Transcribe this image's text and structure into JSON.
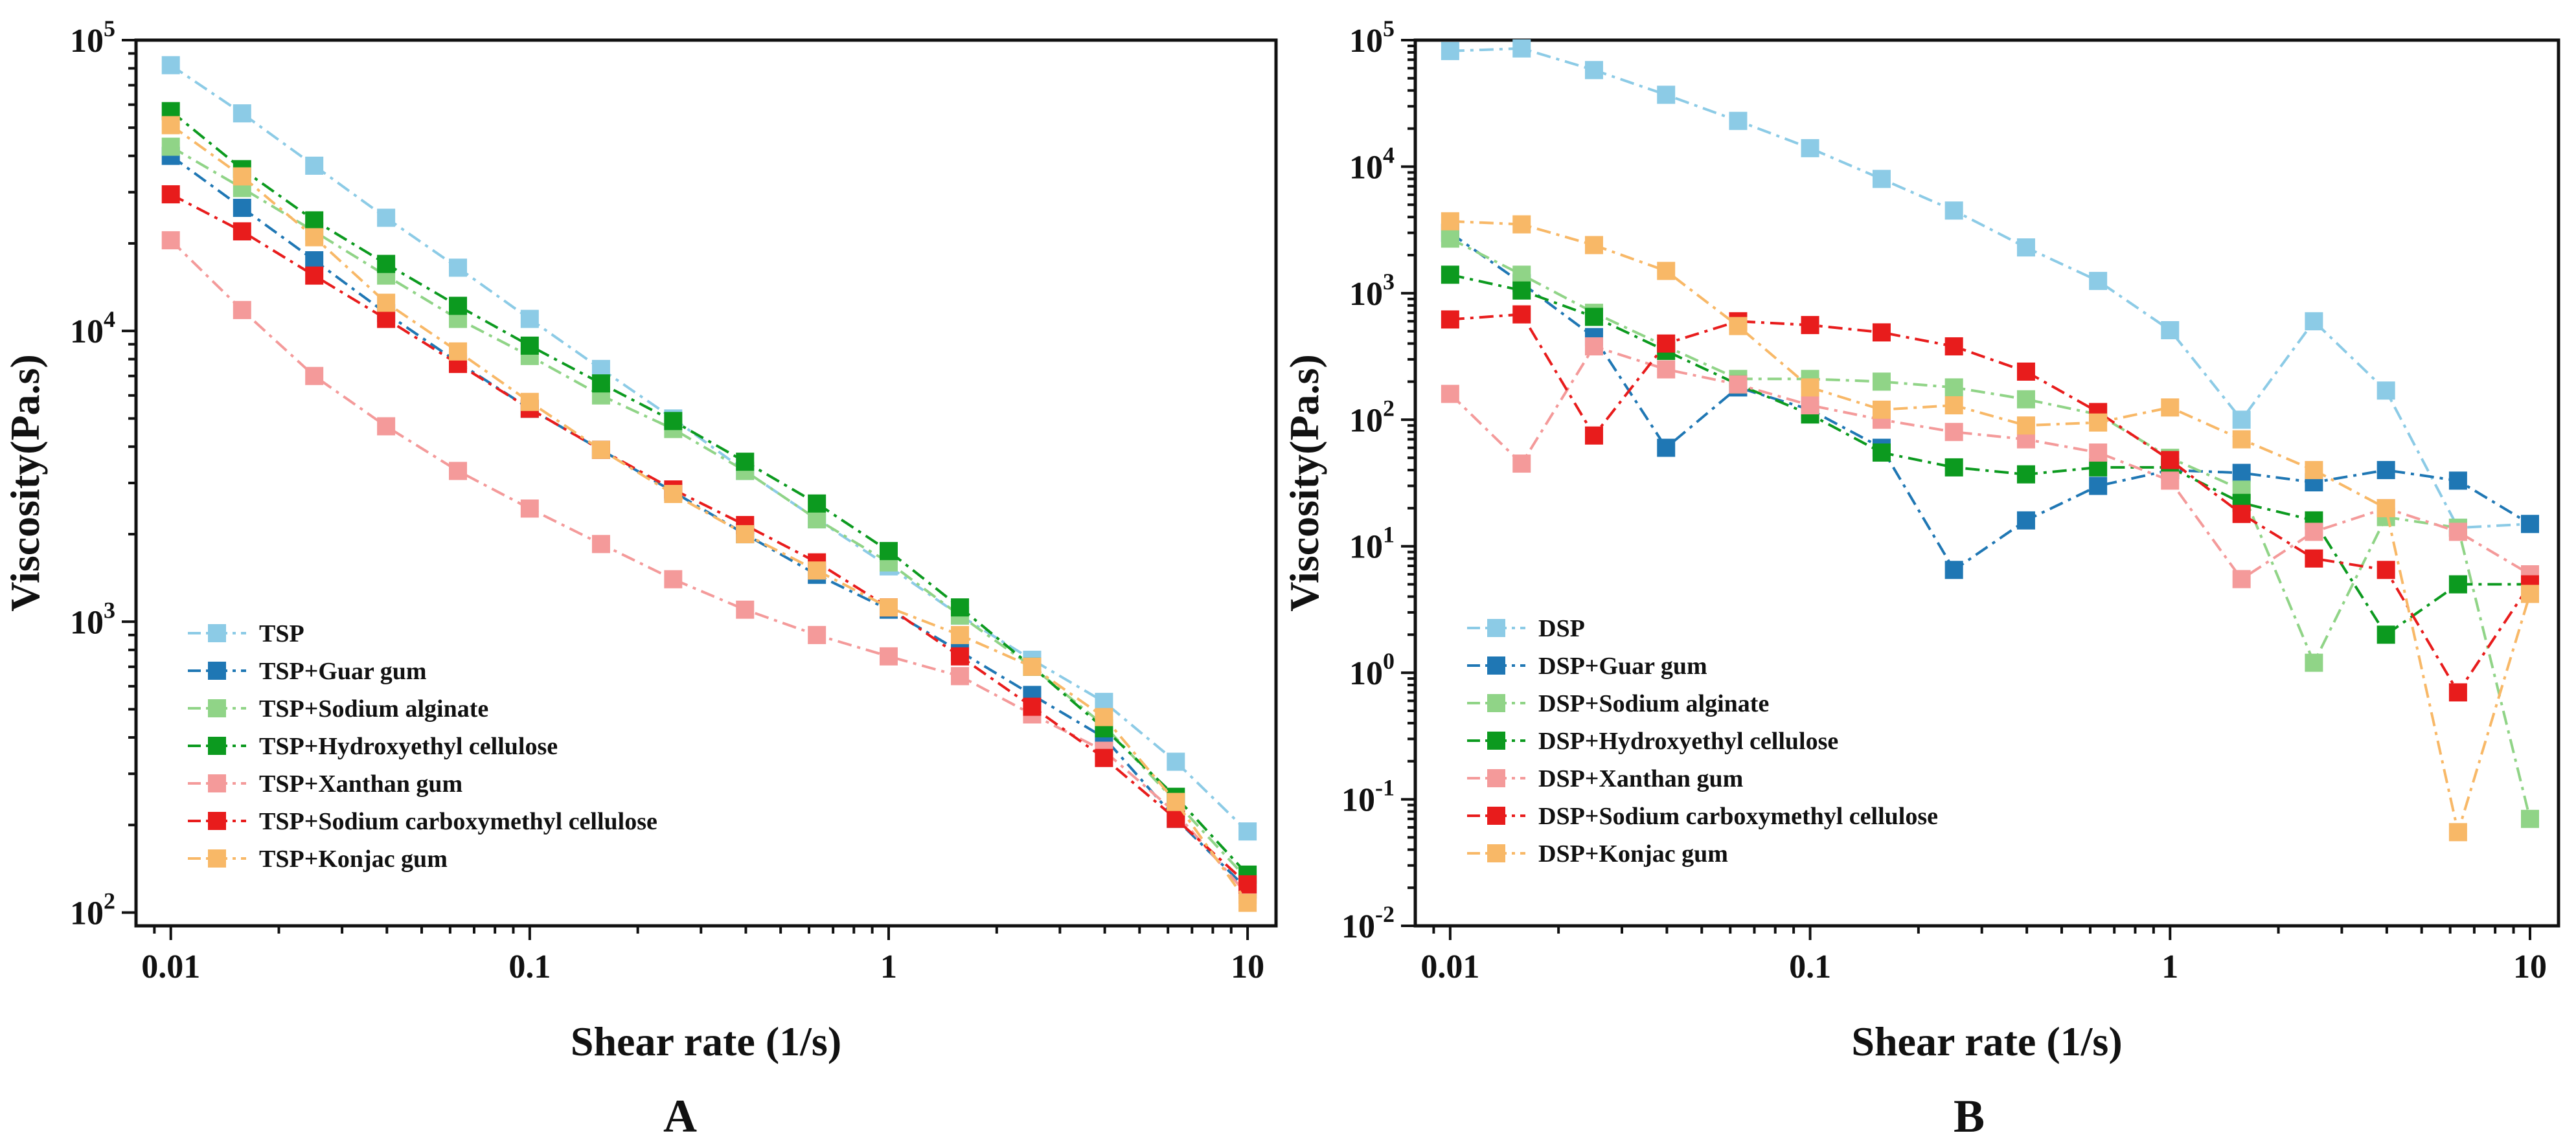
{
  "chart_data": [
    {
      "type": "line",
      "panel_label": "A",
      "xlabel": "Shear rate (1/s)",
      "ylabel": "Viscosity(Pa.s)",
      "xscale": "log",
      "yscale": "log",
      "xlim": [
        0.008,
        12
      ],
      "ylim": [
        90,
        100000
      ],
      "x_ticks": [
        {
          "value": 0.01,
          "label": "0.01"
        },
        {
          "value": 0.1,
          "label": "0.1"
        },
        {
          "value": 1,
          "label": "1"
        },
        {
          "value": 10,
          "label": "10"
        }
      ],
      "y_ticks": [
        {
          "value": 100,
          "base": "10",
          "exp": "2"
        },
        {
          "value": 1000,
          "base": "10",
          "exp": "3"
        },
        {
          "value": 10000,
          "base": "10",
          "exp": "4"
        },
        {
          "value": 100000,
          "base": "10",
          "exp": "5"
        }
      ],
      "legend_position": "bottom-left",
      "x": [
        0.01,
        0.0158,
        0.0251,
        0.0398,
        0.0631,
        0.1,
        0.158,
        0.251,
        0.398,
        0.631,
        1,
        1.58,
        2.51,
        3.98,
        6.31,
        10
      ],
      "series": [
        {
          "name": "TSP",
          "color": "#8ccbe6",
          "values": [
            82000,
            56000,
            37000,
            24500,
            16500,
            11000,
            7400,
            5000,
            3300,
            2250,
            1550,
            1050,
            740,
            530,
            330,
            190
          ]
        },
        {
          "name": "TSP+Guar gum",
          "color": "#1f77b4",
          "values": [
            40000,
            26500,
            17500,
            11500,
            7800,
            5400,
            3900,
            2800,
            2000,
            1450,
            1100,
            790,
            560,
            400,
            210,
            120
          ]
        },
        {
          "name": "TSP+Sodium alginate",
          "color": "#90d487",
          "values": [
            43000,
            31000,
            22000,
            15500,
            11000,
            8200,
            6000,
            4600,
            3300,
            2250,
            1600,
            1050,
            700,
            440,
            240,
            130
          ]
        },
        {
          "name": "TSP+Hydroxyethyl cellulose",
          "color": "#0c9a1f",
          "values": [
            57000,
            36000,
            24000,
            17000,
            12200,
            8900,
            6600,
            4900,
            3550,
            2550,
            1750,
            1120,
            700,
            430,
            250,
            135
          ]
        },
        {
          "name": "TSP+Xanthan gum",
          "color": "#f49a9a",
          "values": [
            20500,
            11800,
            7000,
            4700,
            3300,
            2450,
            1850,
            1400,
            1100,
            900,
            760,
            650,
            480,
            360,
            220,
            115
          ]
        },
        {
          "name": "TSP+Sodium carboxymethyl cellulose",
          "color": "#e81c1c",
          "values": [
            29500,
            22000,
            15500,
            11000,
            7700,
            5400,
            3900,
            2850,
            2150,
            1600,
            1120,
            760,
            510,
            340,
            210,
            125
          ]
        },
        {
          "name": "TSP+Konjac gum",
          "color": "#f8b867",
          "values": [
            51000,
            34000,
            21000,
            12500,
            8500,
            5700,
            3900,
            2750,
            2000,
            1500,
            1120,
            900,
            700,
            470,
            240,
            108
          ]
        }
      ]
    },
    {
      "type": "line",
      "panel_label": "B",
      "xlabel": "Shear rate (1/s)",
      "ylabel": "Viscosity(Pa.s)",
      "xscale": "log",
      "yscale": "log",
      "xlim": [
        0.008,
        12
      ],
      "ylim": [
        0.01,
        100000
      ],
      "x_ticks": [
        {
          "value": 0.01,
          "label": "0.01"
        },
        {
          "value": 0.1,
          "label": "0.1"
        },
        {
          "value": 1,
          "label": "1"
        },
        {
          "value": 10,
          "label": "10"
        }
      ],
      "y_ticks": [
        {
          "value": 0.01,
          "base": "10",
          "exp": "-2"
        },
        {
          "value": 0.1,
          "base": "10",
          "exp": "-1"
        },
        {
          "value": 1,
          "base": "10",
          "exp": "0"
        },
        {
          "value": 10,
          "base": "10",
          "exp": "1"
        },
        {
          "value": 100,
          "base": "10",
          "exp": "2"
        },
        {
          "value": 1000,
          "base": "10",
          "exp": "3"
        },
        {
          "value": 10000,
          "base": "10",
          "exp": "4"
        },
        {
          "value": 100000,
          "base": "10",
          "exp": "5"
        }
      ],
      "legend_position": "bottom-left",
      "x": [
        0.01,
        0.0158,
        0.0251,
        0.0398,
        0.0631,
        0.1,
        0.158,
        0.251,
        0.398,
        0.631,
        1,
        1.58,
        2.51,
        3.98,
        6.31,
        10
      ],
      "series": [
        {
          "name": "DSP",
          "color": "#8ccbe6",
          "values": [
            82000,
            86000,
            58000,
            37000,
            23000,
            14000,
            8000,
            4500,
            2300,
            1250,
            510,
            100,
            600,
            170,
            14,
            15
          ]
        },
        {
          "name": "DSP+Guar gum",
          "color": "#1f77b4",
          "values": [
            3000,
            1200,
            450,
            60,
            180,
            120,
            60,
            6.5,
            16,
            30,
            40,
            38,
            32,
            40,
            33,
            15
          ]
        },
        {
          "name": "DSP+Sodium alginate",
          "color": "#90d487",
          "values": [
            2700,
            1400,
            700,
            380,
            210,
            210,
            200,
            180,
            145,
            110,
            50,
            28,
            1.2,
            17,
            14,
            0.07
          ]
        },
        {
          "name": "DSP+Hydroxyethyl cellulose",
          "color": "#0c9a1f",
          "values": [
            1400,
            1050,
            650,
            350,
            190,
            110,
            55,
            42,
            37,
            42,
            42,
            22,
            16,
            2,
            5,
            5
          ]
        },
        {
          "name": "DSP+Xanthan gum",
          "color": "#f49a9a",
          "values": [
            160,
            45,
            380,
            250,
            190,
            130,
            100,
            80,
            70,
            55,
            33,
            5.5,
            13,
            20,
            13,
            6
          ]
        },
        {
          "name": "DSP+Sodium carboxymethyl cellulose",
          "color": "#e81c1c",
          "values": [
            620,
            680,
            75,
            400,
            600,
            560,
            490,
            380,
            240,
            115,
            48,
            18,
            8,
            6.5,
            0.7,
            5
          ]
        },
        {
          "name": "DSP+Konjac gum",
          "color": "#f8b867",
          "values": [
            3700,
            3500,
            2400,
            1500,
            550,
            180,
            120,
            130,
            90,
            95,
            125,
            70,
            40,
            20,
            0.055,
            4.2
          ]
        }
      ]
    }
  ]
}
